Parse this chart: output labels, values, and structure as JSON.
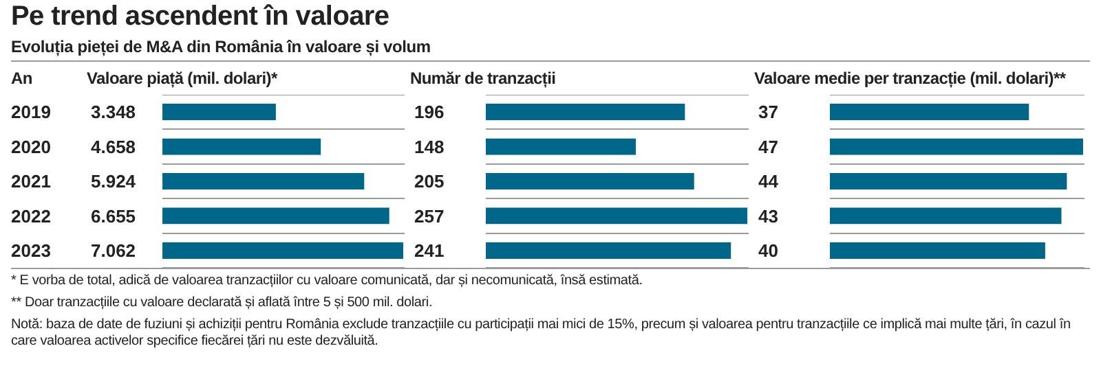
{
  "chart_data": [
    {
      "type": "bar",
      "orientation": "horizontal",
      "title": "Pe trend ascendent în valoare",
      "subtitle": "Evoluția pieței de M&A din România în valoare și volum",
      "ylabel": "An",
      "xlabel": "Valoare piață (mil. dolari)*",
      "categories": [
        "2019",
        "2020",
        "2021",
        "2022",
        "2023"
      ],
      "values": [
        3348,
        4658,
        5924,
        6655,
        7062
      ],
      "value_labels": [
        "3.348",
        "4.658",
        "5.924",
        "6.655",
        "7.062"
      ],
      "color": "#00668a",
      "grid": "y",
      "tick_labels": "y",
      "annotations": [
        "* E vorba de total, adică de valoarea tranzacțiilor cu valoare comunicată, dar și necomunicată, însă estimată.",
        "** Doar tranzacțiile cu valoare declarată și aflată între 5 și 500 mil. dolari.",
        "Notă: baza de date de fuziuni și achiziții pentru România exclude tranzacțiile cu participații mai mici de 15%, precum și valoarea pentru tranzacțiile ce implică mai multe țări, în cazul în care valoarea activelor specifice fiecărei țări nu este dezvăluită."
      ]
    },
    {
      "type": "bar",
      "orientation": "horizontal",
      "xlabel": "Număr de tranzacții",
      "categories": [
        "2019",
        "2020",
        "2021",
        "2022",
        "2023"
      ],
      "values": [
        196,
        148,
        205,
        257,
        241
      ],
      "value_labels": [
        "196",
        "148",
        "205",
        "257",
        "241"
      ],
      "color": "#00668a",
      "grid": "y",
      "tick_labels": false
    },
    {
      "type": "bar",
      "orientation": "horizontal",
      "xlabel": "Valoare medie per tranzacție (mil. dolari)**",
      "categories": [
        "2019",
        "2020",
        "2021",
        "2022",
        "2023"
      ],
      "values": [
        37,
        47,
        44,
        43,
        40
      ],
      "value_labels": [
        "37",
        "47",
        "44",
        "43",
        "40"
      ],
      "color": "#00668a",
      "grid": "y",
      "tick_labels": false
    }
  ]
}
